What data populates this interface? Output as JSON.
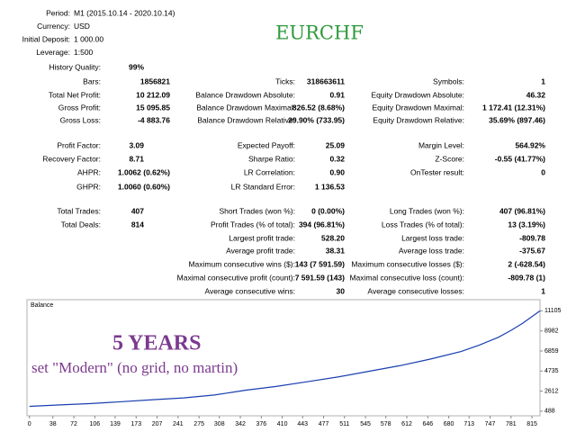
{
  "header": {
    "rows": [
      {
        "label": "Period:",
        "value": "M1 (2015.10.14 - 2020.10.14)"
      },
      {
        "label": "Currency:",
        "value": "USD"
      },
      {
        "label": "Initial Deposit:",
        "value": "1 000.00"
      },
      {
        "label": "Leverage:",
        "value": "1:500"
      }
    ]
  },
  "symbol": "EURCHF",
  "stats": {
    "rows": [
      {
        "c1": {
          "label": "History Quality:",
          "value": "99%"
        }
      },
      {
        "c1": {
          "label": "Bars:",
          "value": "1856821"
        },
        "c2": {
          "label": "Ticks:",
          "value": "318663611"
        },
        "c3": {
          "label": "Symbols:",
          "value": "1"
        }
      },
      {
        "c1": {
          "label": "Total Net Profit:",
          "value": "10 212.09"
        },
        "c2": {
          "label": "Balance Drawdown Absolute:",
          "value": "0.91"
        },
        "c3": {
          "label": "Equity Drawdown Absolute:",
          "value": "46.32"
        }
      },
      {
        "c1": {
          "label": "Gross Profit:",
          "value": "15 095.85"
        },
        "c2": {
          "label": "Balance Drawdown Maximal:",
          "value": "826.52 (8.68%)"
        },
        "c3": {
          "label": "Equity Drawdown Maximal:",
          "value": "1 172.41 (12.31%)"
        }
      },
      {
        "c1": {
          "label": "Gross Loss:",
          "value": "-4 883.76"
        },
        "c2": {
          "label": "Balance Drawdown Relative:",
          "value": "29.90% (733.95)"
        },
        "c3": {
          "label": "Equity Drawdown Relative:",
          "value": "35.69% (897.46)"
        }
      },
      {
        "c1": {
          "label": "Profit Factor:",
          "value": "3.09"
        },
        "c2": {
          "label": "Expected Payoff:",
          "value": "25.09"
        },
        "c3": {
          "label": "Margin Level:",
          "value": "564.92%"
        }
      },
      {
        "c1": {
          "label": "Recovery Factor:",
          "value": "8.71"
        },
        "c2": {
          "label": "Sharpe Ratio:",
          "value": "0.32"
        },
        "c3": {
          "label": "Z-Score:",
          "value": "-0.55 (41.77%)"
        }
      },
      {
        "c1": {
          "label": "AHPR:",
          "value": "1.0062 (0.62%)"
        },
        "c2": {
          "label": "LR Correlation:",
          "value": "0.90"
        },
        "c3": {
          "label": "OnTester result:",
          "value": "0"
        }
      },
      {
        "c1": {
          "label": "GHPR:",
          "value": "1.0060 (0.60%)"
        },
        "c2": {
          "label": "LR Standard Error:",
          "value": "1 136.53"
        }
      },
      {
        "c1": {
          "label": "Total Trades:",
          "value": "407"
        },
        "c2": {
          "label": "Short Trades (won %):",
          "value": "0 (0.00%)"
        },
        "c3": {
          "label": "Long Trades (won %):",
          "value": "407 (96.81%)"
        }
      },
      {
        "c1": {
          "label": "Total Deals:",
          "value": "814"
        },
        "c2": {
          "label": "Profit Trades (% of total):",
          "value": "394 (96.81%)"
        },
        "c3": {
          "label": "Loss Trades (% of total):",
          "value": "13 (3.19%)"
        }
      },
      {
        "c2": {
          "label": "Largest profit trade:",
          "value": "528.20"
        },
        "c3": {
          "label": "Largest loss trade:",
          "value": "-809.78"
        }
      },
      {
        "c2": {
          "label": "Average profit trade:",
          "value": "38.31"
        },
        "c3": {
          "label": "Average loss trade:",
          "value": "-375.67"
        }
      },
      {
        "c2": {
          "label": "Maximum consecutive wins ($):",
          "value": "143 (7 591.59)"
        },
        "c3": {
          "label": "Maximum consecutive losses ($):",
          "value": "2 (-628.54)"
        }
      },
      {
        "c2": {
          "label": "Maximal consecutive profit (count):",
          "value": "7 591.59 (143)"
        },
        "c3": {
          "label": "Maximal consecutive loss (count):",
          "value": "-809.78 (1)"
        }
      },
      {
        "c2": {
          "label": "Average consecutive wins:",
          "value": "30"
        },
        "c3": {
          "label": "Average consecutive losses:",
          "value": "1"
        }
      }
    ]
  },
  "chart_data": {
    "type": "line",
    "title": "Balance",
    "annotations": [
      "5 Years",
      "set \"Modern\" (no grid, no martin)"
    ],
    "x": [
      0,
      50,
      100,
      150,
      200,
      250,
      300,
      350,
      400,
      450,
      500,
      550,
      600,
      650,
      700,
      730,
      760,
      780,
      800,
      815,
      828
    ],
    "values": [
      1000,
      1150,
      1300,
      1500,
      1700,
      1900,
      2200,
      2700,
      3100,
      3600,
      4100,
      4700,
      5300,
      6000,
      6800,
      7500,
      8300,
      9000,
      9800,
      10500,
      11100
    ],
    "color": "#1a3fb0",
    "xlim": [
      -4,
      828
    ],
    "ylim": [
      0,
      12000
    ],
    "xticks": [
      0,
      38,
      72,
      106,
      139,
      173,
      207,
      241,
      275,
      308,
      342,
      376,
      410,
      443,
      477,
      511,
      545,
      578,
      612,
      646,
      680,
      713,
      747,
      781,
      815
    ],
    "yticks": [
      488,
      2612,
      4735,
      6859,
      8982,
      11105
    ]
  }
}
